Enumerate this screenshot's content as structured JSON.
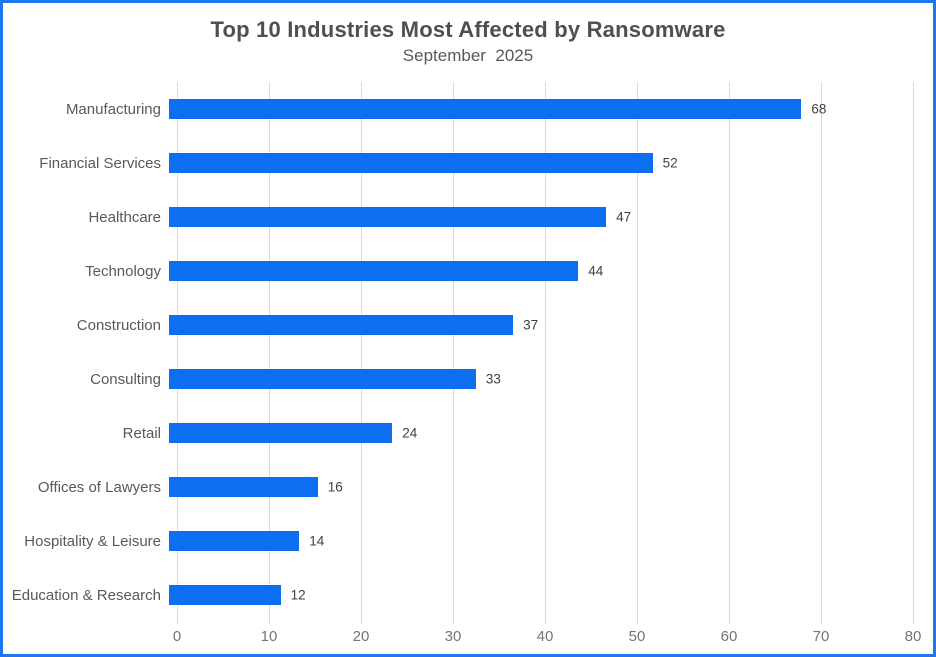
{
  "header": {
    "title": "Top 10 Industries Most Affected by Ransomware",
    "subtitle": "September  2025"
  },
  "colors": {
    "bar": "#0d6ff0",
    "frame_border": "#1d76f2",
    "gridline": "#d9d9d9",
    "title_text": "#4f4f4f",
    "category_text": "#595959",
    "tick_text": "#747474",
    "value_text": "#404040"
  },
  "chart_data": {
    "type": "bar",
    "orientation": "horizontal",
    "title": "Top 10 Industries Most Affected by Ransomware",
    "subtitle": "September  2025",
    "categories": [
      "Manufacturing",
      "Financial Services",
      "Healthcare",
      "Technology",
      "Construction",
      "Consulting",
      "Retail",
      "Offices of Lawyers",
      "Hospitality & Leisure",
      "Education & Research"
    ],
    "values": [
      68,
      52,
      47,
      44,
      37,
      33,
      24,
      16,
      14,
      12
    ],
    "xlabel": "",
    "ylabel": "",
    "xlim": [
      0,
      80
    ],
    "x_ticks": [
      0,
      10,
      20,
      30,
      40,
      50,
      60,
      70,
      80
    ],
    "grid": true,
    "value_labels": true,
    "legend": false
  }
}
